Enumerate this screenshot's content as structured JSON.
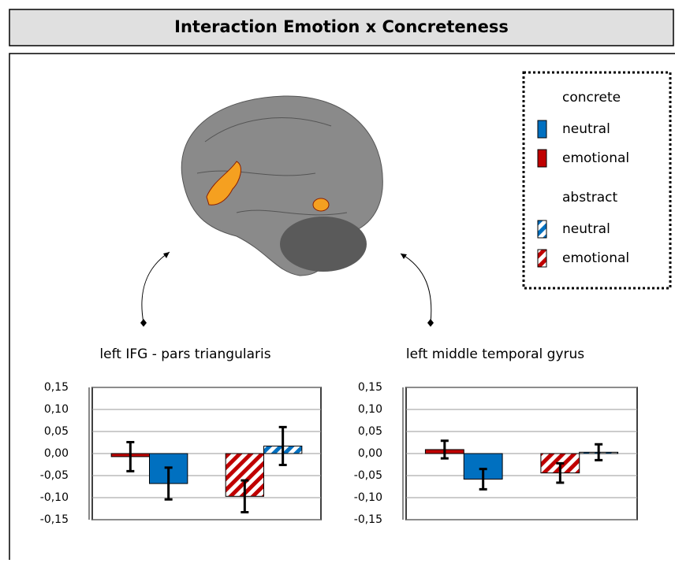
{
  "title": "Interaction Emotion x Concreteness",
  "legend": {
    "groups": [
      {
        "title": "concrete",
        "items": [
          "neutral",
          "emotional"
        ]
      },
      {
        "title": "abstract",
        "items": [
          "neutral",
          "emotional"
        ]
      }
    ]
  },
  "chart_data": [
    {
      "type": "bar",
      "title": "left IFG - pars triangularis",
      "categories": [
        null,
        null
      ],
      "hatch": [
        false,
        true
      ],
      "series": [
        {
          "name": "emotional",
          "color": "#c00000",
          "values": [
            -0.007,
            -0.097
          ],
          "errors": [
            0.033,
            0.036
          ]
        },
        {
          "name": "neutral",
          "color": "#0070c0",
          "values": [
            -0.068,
            0.017
          ],
          "errors": [
            0.036,
            0.043
          ]
        }
      ],
      "ylim": [
        -0.15,
        0.15
      ],
      "yticks": [
        {
          "value": -0.15,
          "label": "-0,15"
        },
        {
          "value": -0.1,
          "label": "-0,10"
        },
        {
          "value": -0.05,
          "label": "-0,05"
        },
        {
          "value": 0,
          "label": "0,00"
        },
        {
          "value": 0.05,
          "label": "0,05"
        },
        {
          "value": 0.1,
          "label": "0,10"
        },
        {
          "value": 0.15,
          "label": "0,15"
        }
      ],
      "grid": true
    },
    {
      "type": "bar",
      "title": "left middle temporal gyrus",
      "categories": [
        null,
        null
      ],
      "hatch": [
        false,
        true
      ],
      "series": [
        {
          "name": "emotional",
          "color": "#c00000",
          "values": [
            0.009,
            -0.044
          ],
          "errors": [
            0.02,
            0.022
          ]
        },
        {
          "name": "neutral",
          "color": "#0070c0",
          "values": [
            -0.058,
            0.003
          ],
          "errors": [
            0.023,
            0.018
          ]
        }
      ],
      "ylim": [
        -0.15,
        0.15
      ],
      "yticks": [
        {
          "value": -0.15,
          "label": "-0,15"
        },
        {
          "value": -0.1,
          "label": "-0,10"
        },
        {
          "value": -0.05,
          "label": "-0,05"
        },
        {
          "value": 0,
          "label": "0,00"
        },
        {
          "value": 0.05,
          "label": "0,05"
        },
        {
          "value": 0.1,
          "label": "0,10"
        },
        {
          "value": 0.15,
          "label": "0,15"
        }
      ],
      "grid": true
    }
  ]
}
